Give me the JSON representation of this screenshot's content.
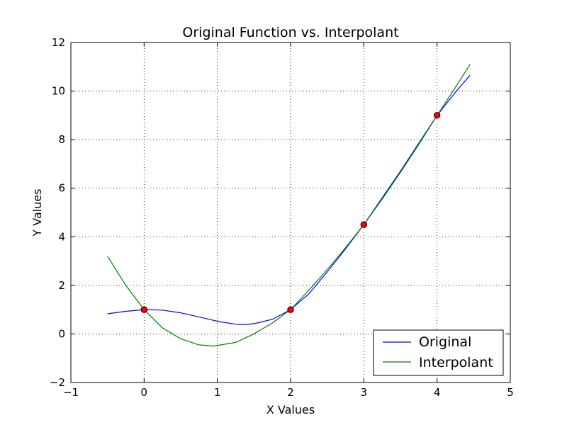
{
  "chart_data": {
    "type": "line",
    "title": "Original Function vs. Interpolant",
    "xlabel": "X Values",
    "ylabel": "Y Values",
    "xlim": [
      -1,
      5
    ],
    "ylim": [
      -2,
      12
    ],
    "xticks": [
      -1,
      0,
      1,
      2,
      3,
      4,
      5
    ],
    "yticks": [
      -2,
      0,
      2,
      4,
      6,
      8,
      10,
      12
    ],
    "xtick_labels": [
      "−1",
      "0",
      "1",
      "2",
      "3",
      "4",
      "5"
    ],
    "ytick_labels": [
      "−2",
      "0",
      "2",
      "4",
      "6",
      "8",
      "10",
      "12"
    ],
    "grid": true,
    "legend_position": "lower-right",
    "series": [
      {
        "name": "Original",
        "color": "#0000ff",
        "x": [
          -0.5,
          -0.25,
          0,
          0.25,
          0.5,
          0.75,
          1.0,
          1.25,
          1.35,
          1.5,
          1.75,
          2.0,
          2.25,
          2.5,
          2.75,
          3.0,
          3.25,
          3.5,
          3.75,
          4.0,
          4.25,
          4.45
        ],
        "y": [
          0.83,
          0.93,
          1.0,
          0.98,
          0.87,
          0.7,
          0.52,
          0.4,
          0.38,
          0.42,
          0.6,
          1.0,
          1.65,
          2.55,
          3.5,
          4.5,
          5.6,
          6.7,
          7.85,
          9.0,
          9.95,
          10.65
        ]
      },
      {
        "name": "Interpolant",
        "color": "#008000",
        "x": [
          -0.5,
          -0.25,
          0,
          0.25,
          0.5,
          0.75,
          0.95,
          1.25,
          1.5,
          1.75,
          2.0,
          2.25,
          2.5,
          2.75,
          3.0,
          3.25,
          3.5,
          3.75,
          4.0,
          4.25,
          4.45
        ],
        "y": [
          3.2,
          2.0,
          1.0,
          0.25,
          -0.2,
          -0.45,
          -0.5,
          -0.35,
          0.0,
          0.45,
          1.0,
          1.8,
          2.65,
          3.55,
          4.5,
          5.55,
          6.65,
          7.8,
          9.0,
          10.15,
          11.1
        ]
      }
    ],
    "points": {
      "x": [
        0,
        2,
        3,
        4
      ],
      "y": [
        1,
        1,
        4.5,
        9
      ],
      "color": "#ff0000"
    }
  }
}
